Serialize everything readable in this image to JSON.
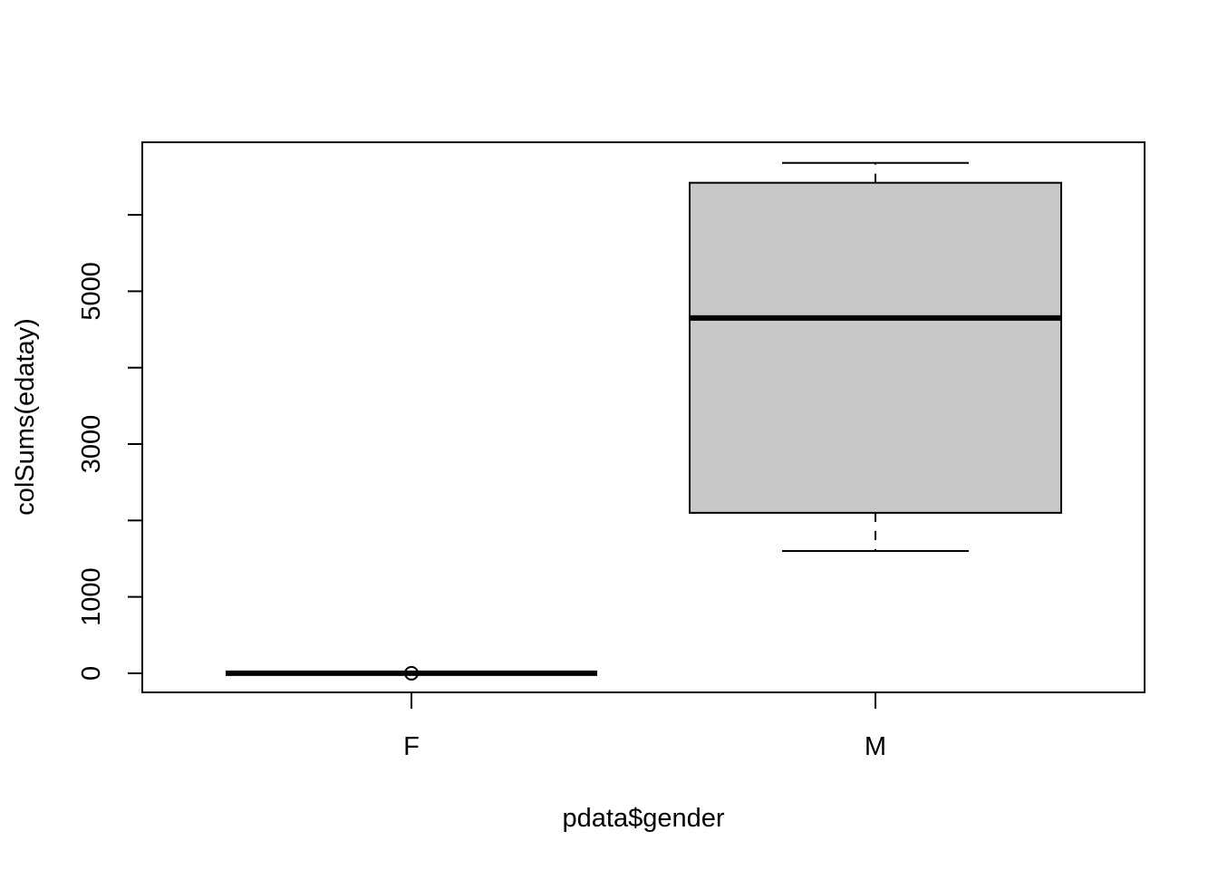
{
  "chart_data": {
    "type": "box",
    "title": "",
    "xlabel": "pdata$gender",
    "ylabel": "colSums(edatay)",
    "categories": [
      "F",
      "M"
    ],
    "ylim": [
      -250,
      6950
    ],
    "yticks": [
      0,
      1000,
      2000,
      3000,
      4000,
      5000,
      6000
    ],
    "ytick_labels": [
      "0",
      "1000",
      "",
      "3000",
      "",
      "5000",
      ""
    ],
    "boxes": [
      {
        "category": "F",
        "whisker_low": 0,
        "q1": 0,
        "median": 0,
        "q3": 0,
        "whisker_high": 0,
        "outliers": [
          0
        ]
      },
      {
        "category": "M",
        "whisker_low": 1600,
        "q1": 2100,
        "median": 4650,
        "q3": 6420,
        "whisker_high": 6680,
        "outliers": []
      }
    ],
    "box_fill": "#c8c8c8",
    "grid": false,
    "legend": "none"
  }
}
